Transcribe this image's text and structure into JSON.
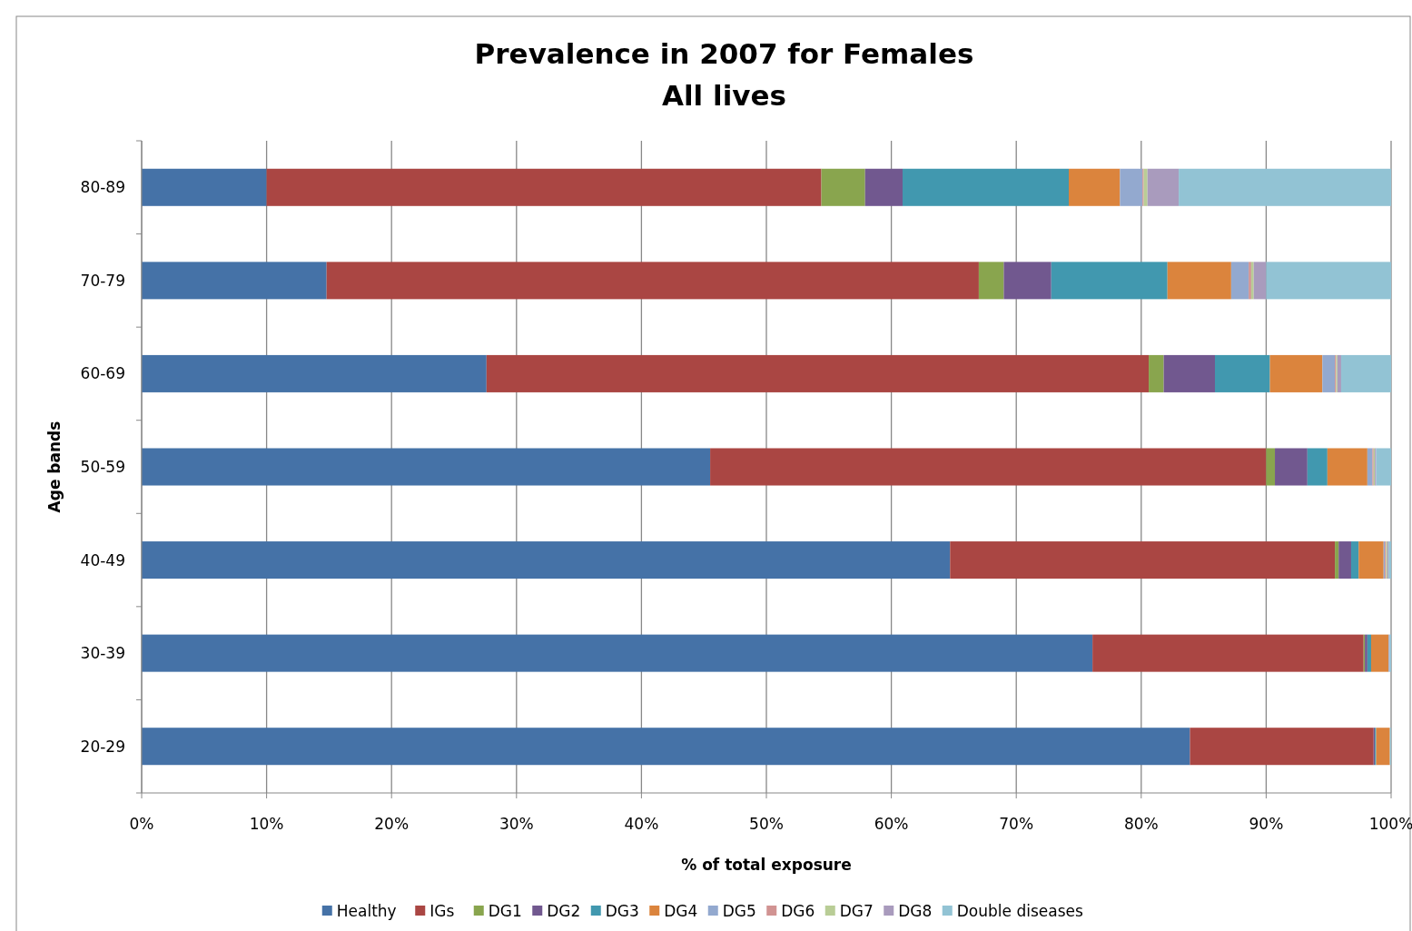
{
  "chart_data": {
    "type": "bar",
    "orientation": "horizontal",
    "stacked": true,
    "title": "Prevalence in 2007  for Females\nAll lives",
    "xlabel": "% of total exposure",
    "ylabel": "Age bands",
    "categories": [
      "80-89",
      "70-79",
      "60-69",
      "50-59",
      "40-49",
      "30-39",
      "20-29"
    ],
    "series": [
      {
        "name": "Healthy",
        "color": "#4572a7",
        "values": [
          10.0,
          14.8,
          27.6,
          45.5,
          64.7,
          76.1,
          83.9
        ]
      },
      {
        "name": "IGs",
        "color": "#aa4643",
        "values": [
          44.4,
          52.2,
          53.0,
          44.5,
          30.8,
          21.7,
          14.7
        ]
      },
      {
        "name": "DG1",
        "color": "#89a54e",
        "values": [
          3.5,
          2.0,
          1.2,
          0.7,
          0.3,
          0.1,
          0
        ]
      },
      {
        "name": "DG2",
        "color": "#71588f",
        "values": [
          3.0,
          3.8,
          4.1,
          2.6,
          1.0,
          0.2,
          0.1
        ]
      },
      {
        "name": "DG3",
        "color": "#4198af",
        "values": [
          13.3,
          9.3,
          4.4,
          1.6,
          0.6,
          0.3,
          0.1
        ]
      },
      {
        "name": "DG4",
        "color": "#db843d",
        "values": [
          4.1,
          5.1,
          4.2,
          3.2,
          2.0,
          1.4,
          1.1
        ]
      },
      {
        "name": "DG5",
        "color": "#93a9cf",
        "values": [
          1.8,
          1.4,
          1.0,
          0.4,
          0.1,
          0.1,
          0
        ]
      },
      {
        "name": "DG6",
        "color": "#d19392",
        "values": [
          0.1,
          0.2,
          0.1,
          0.1,
          0.1,
          0,
          0
        ]
      },
      {
        "name": "DG7",
        "color": "#b9cd96",
        "values": [
          0.3,
          0.2,
          0.1,
          0.1,
          0.1,
          0,
          0
        ]
      },
      {
        "name": "DG8",
        "color": "#a99bbd",
        "values": [
          2.5,
          1.0,
          0.3,
          0.1,
          0.1,
          0,
          0
        ]
      },
      {
        "name": "Double diseases",
        "color": "#92c3d4",
        "values": [
          17.0,
          10.0,
          4.0,
          1.2,
          0.2,
          0.1,
          0.1
        ]
      }
    ],
    "xlim": [
      0,
      100
    ],
    "xticks": [
      {
        "value": 0,
        "label": "0%"
      },
      {
        "value": 10,
        "label": "10%"
      },
      {
        "value": 20,
        "label": "20%"
      },
      {
        "value": 30,
        "label": "30%"
      },
      {
        "value": 40,
        "label": "40%"
      },
      {
        "value": 50,
        "label": "50%"
      },
      {
        "value": 60,
        "label": "60%"
      },
      {
        "value": 70,
        "label": "70%"
      },
      {
        "value": 80,
        "label": "80%"
      },
      {
        "value": 90,
        "label": "90%"
      },
      {
        "value": 100,
        "label": "100%"
      }
    ],
    "grid": "x",
    "legend": "bottom"
  }
}
